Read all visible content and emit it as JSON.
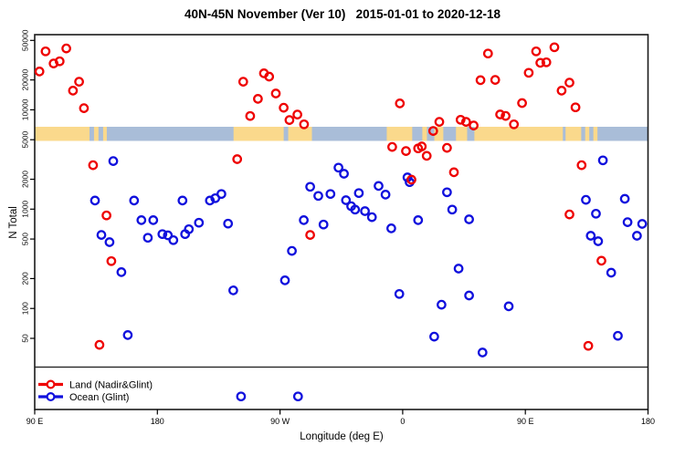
{
  "title": "40N-45N November (Ver 10)   2015-01-01 to 2020-12-18",
  "axes": {
    "x": {
      "label": "Longitude (deg E)",
      "tick_labels": [
        "90 E",
        "180",
        "90 W",
        "0",
        "90 E",
        "180"
      ],
      "tick_positions_deg": [
        0,
        90,
        180,
        270,
        360,
        450
      ]
    },
    "y": {
      "label": "N Total",
      "scale": "log",
      "tick_values": [
        50000,
        20000,
        10000,
        5000,
        2000,
        1000,
        500,
        200,
        100,
        50
      ]
    }
  },
  "legend": {
    "items": [
      {
        "label": "Land (Nadir&Glint)",
        "color": "#EE0000"
      },
      {
        "label": "Ocean (Glint)",
        "color": "#1010DD"
      }
    ]
  },
  "map_band": {
    "land_color": "#FAD98C",
    "ocean_color": "#A9BDD8",
    "land_segments_deg": [
      [
        0,
        40.2
      ],
      [
        43.5,
        46.8
      ],
      [
        50.2,
        52.9
      ],
      [
        145.9,
        182.7
      ],
      [
        186.0,
        203.4
      ],
      [
        258.3,
        277.0
      ],
      [
        284.4,
        287.8
      ],
      [
        293.2,
        299.8
      ],
      [
        309.1,
        317.3
      ],
      [
        322.6,
        387.5
      ],
      [
        389.5,
        401.0
      ],
      [
        403.9,
        406.9
      ],
      [
        409.9,
        412.9
      ]
    ]
  },
  "chart_data": {
    "type": "scatter",
    "title": "40N-45N November (Ver 10)   2015-01-01 to 2020-12-18",
    "xlabel": "Longitude (deg E)",
    "ylabel": "N Total",
    "x_axis": {
      "span_deg": 450,
      "start_at": "90 E",
      "tick_labels": [
        "90 E",
        "180",
        "90 W",
        "0",
        "90 E",
        "180"
      ]
    },
    "y_axis": {
      "scale": "log",
      "ticks": [
        50000,
        20000,
        10000,
        5000,
        2000,
        1000,
        500,
        200,
        100,
        50
      ]
    },
    "x_unit": "degrees east along axis starting at 90E",
    "y_unit": "N Total",
    "series": [
      {
        "name": "Land (Nadir&Glint)",
        "color": "#EE0000",
        "points": [
          [
            8.0,
            38800
          ],
          [
            23.2,
            41500
          ],
          [
            13.9,
            29300
          ],
          [
            18.3,
            30800
          ],
          [
            3.5,
            24300
          ],
          [
            32.6,
            19200
          ],
          [
            28.1,
            15600
          ],
          [
            36.1,
            10400
          ],
          [
            42.8,
            2770
          ],
          [
            52.7,
            865
          ],
          [
            56.2,
            300
          ],
          [
            47.5,
            43
          ],
          [
            153.0,
            19200
          ],
          [
            168.2,
            23300
          ],
          [
            172.0,
            21600
          ],
          [
            163.8,
            12900
          ],
          [
            176.9,
            14600
          ],
          [
            158.1,
            8660
          ],
          [
            182.7,
            10500
          ],
          [
            186.9,
            7900
          ],
          [
            192.7,
            8970
          ],
          [
            197.6,
            7150
          ],
          [
            148.6,
            3190
          ],
          [
            202.1,
            550
          ],
          [
            267.9,
            11600
          ],
          [
            296.9,
            7560
          ],
          [
            312.5,
            7950
          ],
          [
            316.5,
            7560
          ],
          [
            322.1,
            6960
          ],
          [
            292.4,
            6130
          ],
          [
            262.3,
            4230
          ],
          [
            272.4,
            3850
          ],
          [
            281.3,
            4090
          ],
          [
            284.0,
            4280
          ],
          [
            287.6,
            3440
          ],
          [
            302.5,
            4140
          ],
          [
            307.6,
            2350
          ],
          [
            276.4,
            1980
          ],
          [
            332.6,
            36900
          ],
          [
            327.1,
            19900
          ],
          [
            337.9,
            20000
          ],
          [
            341.5,
            8990
          ],
          [
            345.5,
            8680
          ],
          [
            351.6,
            7150
          ],
          [
            367.9,
            38800
          ],
          [
            381.3,
            42700
          ],
          [
            371.0,
            29700
          ],
          [
            375.4,
            30100
          ],
          [
            362.5,
            23600
          ],
          [
            392.4,
            18800
          ],
          [
            386.6,
            15600
          ],
          [
            357.6,
            11700
          ],
          [
            396.8,
            10600
          ],
          [
            401.3,
            2770
          ],
          [
            392.4,
            885
          ],
          [
            415.8,
            302
          ],
          [
            406.2,
            42
          ]
        ]
      },
      {
        "name": "Ocean (Glint)",
        "color": "#1010DD",
        "points": [
          [
            57.6,
            3050
          ],
          [
            44.2,
            1220
          ],
          [
            72.9,
            1220
          ],
          [
            108.4,
            1220
          ],
          [
            78.3,
            775
          ],
          [
            87.0,
            775
          ],
          [
            48.9,
            550
          ],
          [
            54.9,
            465
          ],
          [
            83.0,
            515
          ],
          [
            93.7,
            560
          ],
          [
            97.7,
            545
          ],
          [
            101.7,
            487
          ],
          [
            110.4,
            560
          ],
          [
            63.6,
            232
          ],
          [
            68.3,
            54
          ],
          [
            113.1,
            628
          ],
          [
            120.5,
            730
          ],
          [
            128.5,
            1220
          ],
          [
            132.5,
            1290
          ],
          [
            137.0,
            1420
          ],
          [
            141.9,
            715
          ],
          [
            197.4,
            775
          ],
          [
            211.9,
            700
          ],
          [
            202.1,
            1680
          ],
          [
            208.1,
            1360
          ],
          [
            217.0,
            1420
          ],
          [
            222.9,
            2620
          ],
          [
            226.9,
            2270
          ],
          [
            188.7,
            380
          ],
          [
            183.6,
            192
          ],
          [
            145.7,
            152
          ],
          [
            151.4,
            13
          ],
          [
            193.2,
            13
          ],
          [
            273.5,
            2090
          ],
          [
            275.1,
            1870
          ],
          [
            252.3,
            1710
          ],
          [
            257.4,
            1400
          ],
          [
            237.8,
            1450
          ],
          [
            232.2,
            1070
          ],
          [
            235.1,
            990
          ],
          [
            228.4,
            1230
          ],
          [
            242.3,
            955
          ],
          [
            247.4,
            830
          ],
          [
            302.5,
            1480
          ],
          [
            306.3,
            990
          ],
          [
            318.7,
            790
          ],
          [
            281.3,
            775
          ],
          [
            261.6,
            640
          ],
          [
            311.0,
            252
          ],
          [
            267.5,
            140
          ],
          [
            318.7,
            135
          ],
          [
            298.5,
            109
          ],
          [
            293.1,
            52
          ],
          [
            328.6,
            36
          ],
          [
            416.9,
            3100
          ],
          [
            404.4,
            1240
          ],
          [
            433.0,
            1270
          ],
          [
            411.8,
            900
          ],
          [
            435.0,
            740
          ],
          [
            445.7,
            710
          ],
          [
            408.0,
            540
          ],
          [
            413.4,
            475
          ],
          [
            441.9,
            540
          ],
          [
            423.0,
            229
          ],
          [
            347.8,
            105
          ],
          [
            427.9,
            53
          ]
        ]
      }
    ]
  }
}
